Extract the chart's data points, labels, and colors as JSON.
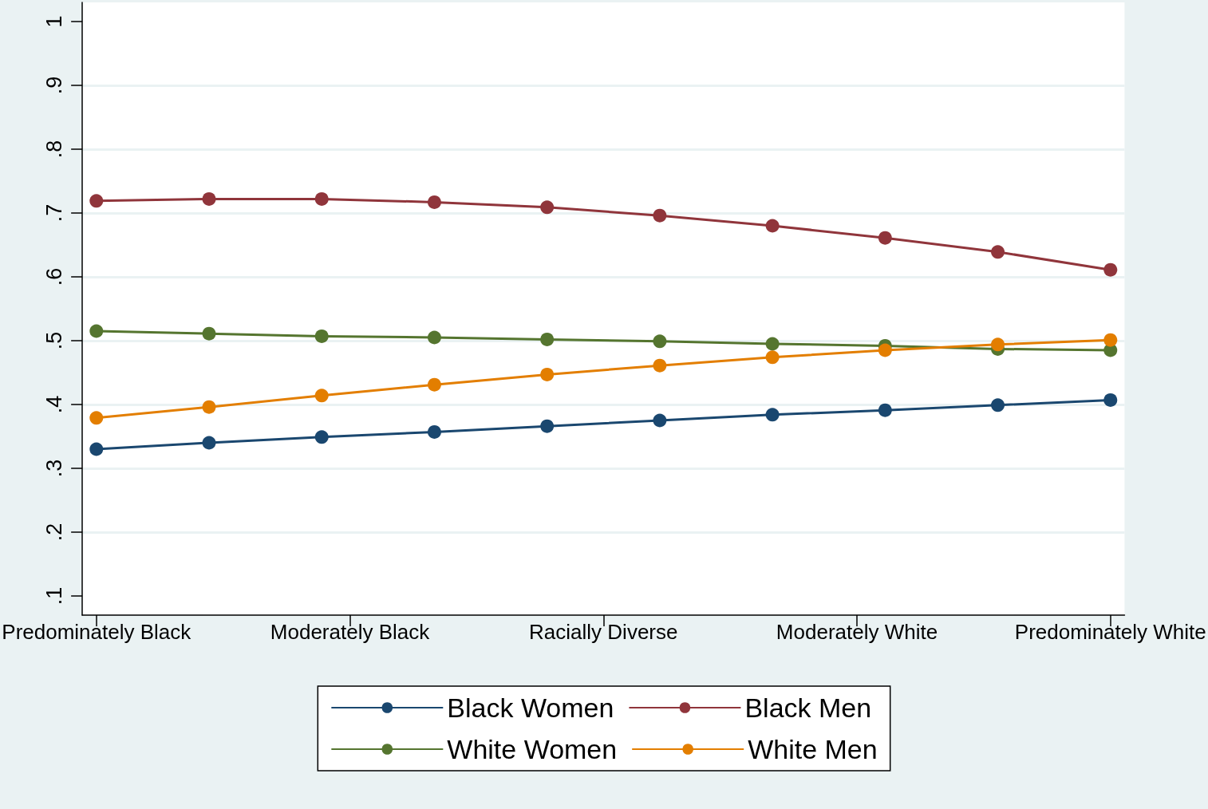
{
  "chart_data": {
    "type": "line",
    "categories": [
      "Predominately Black",
      null,
      null,
      null,
      null,
      null,
      null,
      null,
      null,
      "Moderately Black",
      null,
      null,
      null,
      null,
      null,
      null,
      null,
      null,
      "Racially Diverse",
      null,
      null,
      null,
      null,
      null,
      null,
      null,
      null,
      "Moderately White",
      null,
      null,
      null,
      null,
      null,
      null,
      null,
      null,
      "Predominately White"
    ],
    "ylim": [
      0.07,
      1.03
    ],
    "yticks": [
      {
        "value": 0.1,
        "label": ".1"
      },
      {
        "value": 0.2,
        "label": ".2"
      },
      {
        "value": 0.3,
        "label": ".3"
      },
      {
        "value": 0.4,
        "label": ".4"
      },
      {
        "value": 0.5,
        "label": ".5"
      },
      {
        "value": 0.6,
        "label": ".6"
      },
      {
        "value": 0.7,
        "label": ".7"
      },
      {
        "value": 0.8,
        "label": ".8"
      },
      {
        "value": 0.9,
        "label": ".9"
      },
      1
    ],
    "series": [
      {
        "name": "Black Women",
        "color": "#1a476f",
        "values": [
          0.33,
          null,
          null,
          null,
          0.34,
          null,
          null,
          null,
          0.349,
          null,
          null,
          null,
          0.357,
          null,
          null,
          null,
          0.366,
          null,
          null,
          null,
          0.375,
          null,
          null,
          null,
          0.384,
          null,
          null,
          null,
          0.391,
          null,
          null,
          null,
          0.399,
          null,
          null,
          null,
          0.407
        ]
      },
      {
        "name": "Black Men",
        "color": "#90353b",
        "values": [
          0.719,
          null,
          null,
          null,
          0.722,
          null,
          null,
          null,
          0.722,
          null,
          null,
          null,
          0.717,
          null,
          null,
          null,
          0.709,
          null,
          null,
          null,
          0.696,
          null,
          null,
          null,
          0.68,
          null,
          null,
          null,
          0.661,
          null,
          null,
          null,
          0.639,
          null,
          null,
          null,
          0.611
        ]
      },
      {
        "name": "White Women",
        "color": "#55752f",
        "values": [
          0.515,
          null,
          null,
          null,
          0.511,
          null,
          null,
          null,
          0.507,
          null,
          null,
          null,
          0.505,
          null,
          null,
          null,
          0.502,
          null,
          null,
          null,
          0.499,
          null,
          null,
          null,
          0.495,
          null,
          null,
          null,
          0.492,
          null,
          null,
          null,
          0.487,
          null,
          null,
          null,
          0.485
        ]
      },
      {
        "name": "White Men",
        "color": "#e37e00",
        "values": [
          0.379,
          null,
          null,
          null,
          0.396,
          null,
          null,
          null,
          0.414,
          null,
          null,
          null,
          0.431,
          null,
          null,
          null,
          0.447,
          null,
          null,
          null,
          0.461,
          null,
          null,
          null,
          0.474,
          null,
          null,
          null,
          0.485,
          null,
          null,
          null,
          0.494,
          null,
          null,
          null,
          0.501
        ]
      }
    ],
    "grid": "y",
    "legend": "bottom",
    "marker": "circle",
    "line_style": "solid"
  }
}
